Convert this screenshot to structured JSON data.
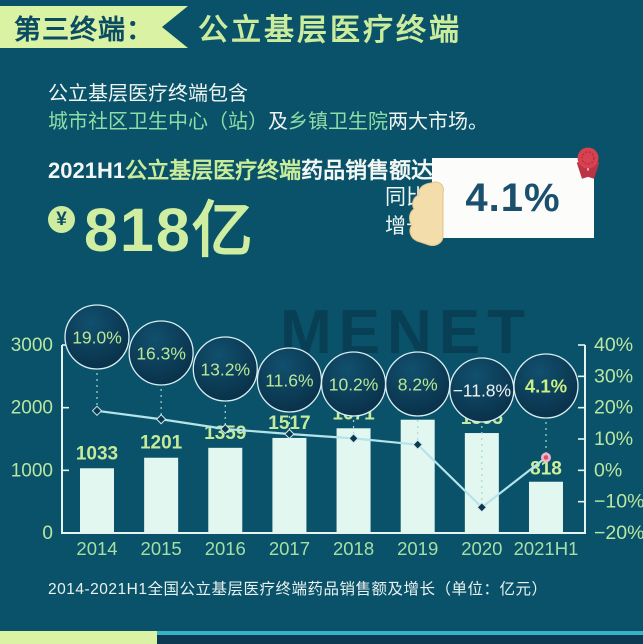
{
  "header": {
    "kicker": "第三终端：",
    "title": "公立基层医疗终端"
  },
  "intro": {
    "line1": "公立基层医疗终端包含",
    "city": "城市社区卫生中心（站）",
    "and": "及",
    "town": "乡镇卫生院",
    "tail": "两大市场。"
  },
  "highlight": {
    "prefix": "2021H1",
    "em": "公立基层医疗终端",
    "suffix": "药品销售额达",
    "currency_symbol": "¥",
    "amount": "818亿",
    "yoy_line1": "同比",
    "yoy_line2": "增长",
    "growth_value": "4.1%"
  },
  "watermark": "MENET",
  "caption": "2014-2021H1全国公立基层医疗终端药品销售额及增长（单位：亿元）",
  "icons": [
    "yen-icon",
    "hand-icon",
    "rosette-award-icon"
  ],
  "colors": {
    "background_teal": "#0A5269",
    "dark_navy": "#0B3A52",
    "accent_green": "#D9F2A3",
    "text_green": "#CBEC9D",
    "mint_green": "#8FDCA6",
    "white": "#F2F7F4",
    "bar_fill": "#E3F7F1",
    "line_cyan": "#B5E3EA",
    "card_white": "#FCFDFA",
    "card_text": "#1B4F6E",
    "rosette_red": "#D8414F",
    "hand_cream": "#F3DDAB",
    "cyan_strip": "#36B4C6"
  },
  "chart_data": {
    "type": "combo",
    "title": "2014-2021H1全国公立基层医疗终端药品销售额及增长（单位：亿元）",
    "categories": [
      "2014",
      "2015",
      "2016",
      "2017",
      "2018",
      "2019",
      "2020",
      "2021H1"
    ],
    "series": [
      {
        "name": "药品销售额（亿元）",
        "type": "bar",
        "values": [
          1033,
          1201,
          1359,
          1517,
          1671,
          1808,
          1595,
          818
        ]
      },
      {
        "name": "同比增长（%）",
        "type": "line",
        "values": [
          19.0,
          16.3,
          13.2,
          11.6,
          10.2,
          8.2,
          -11.8,
          4.1
        ]
      }
    ],
    "growth_labels": [
      "19.0%",
      "16.3%",
      "13.2%",
      "11.6%",
      "10.2%",
      "8.2%",
      "−11.8%",
      "4.1%"
    ],
    "left_axis": {
      "ticks": [
        0,
        1000,
        2000,
        3000
      ],
      "max": 3000,
      "min": 0
    },
    "right_axis": {
      "ticks_pct": [
        -20,
        -10,
        0,
        10,
        20,
        30,
        40
      ],
      "min": -20,
      "max": 40,
      "unit": "%"
    },
    "bubble_y": [
      42,
      58,
      74,
      85,
      89,
      89,
      95,
      91
    ],
    "grid": false,
    "legend": "none"
  }
}
